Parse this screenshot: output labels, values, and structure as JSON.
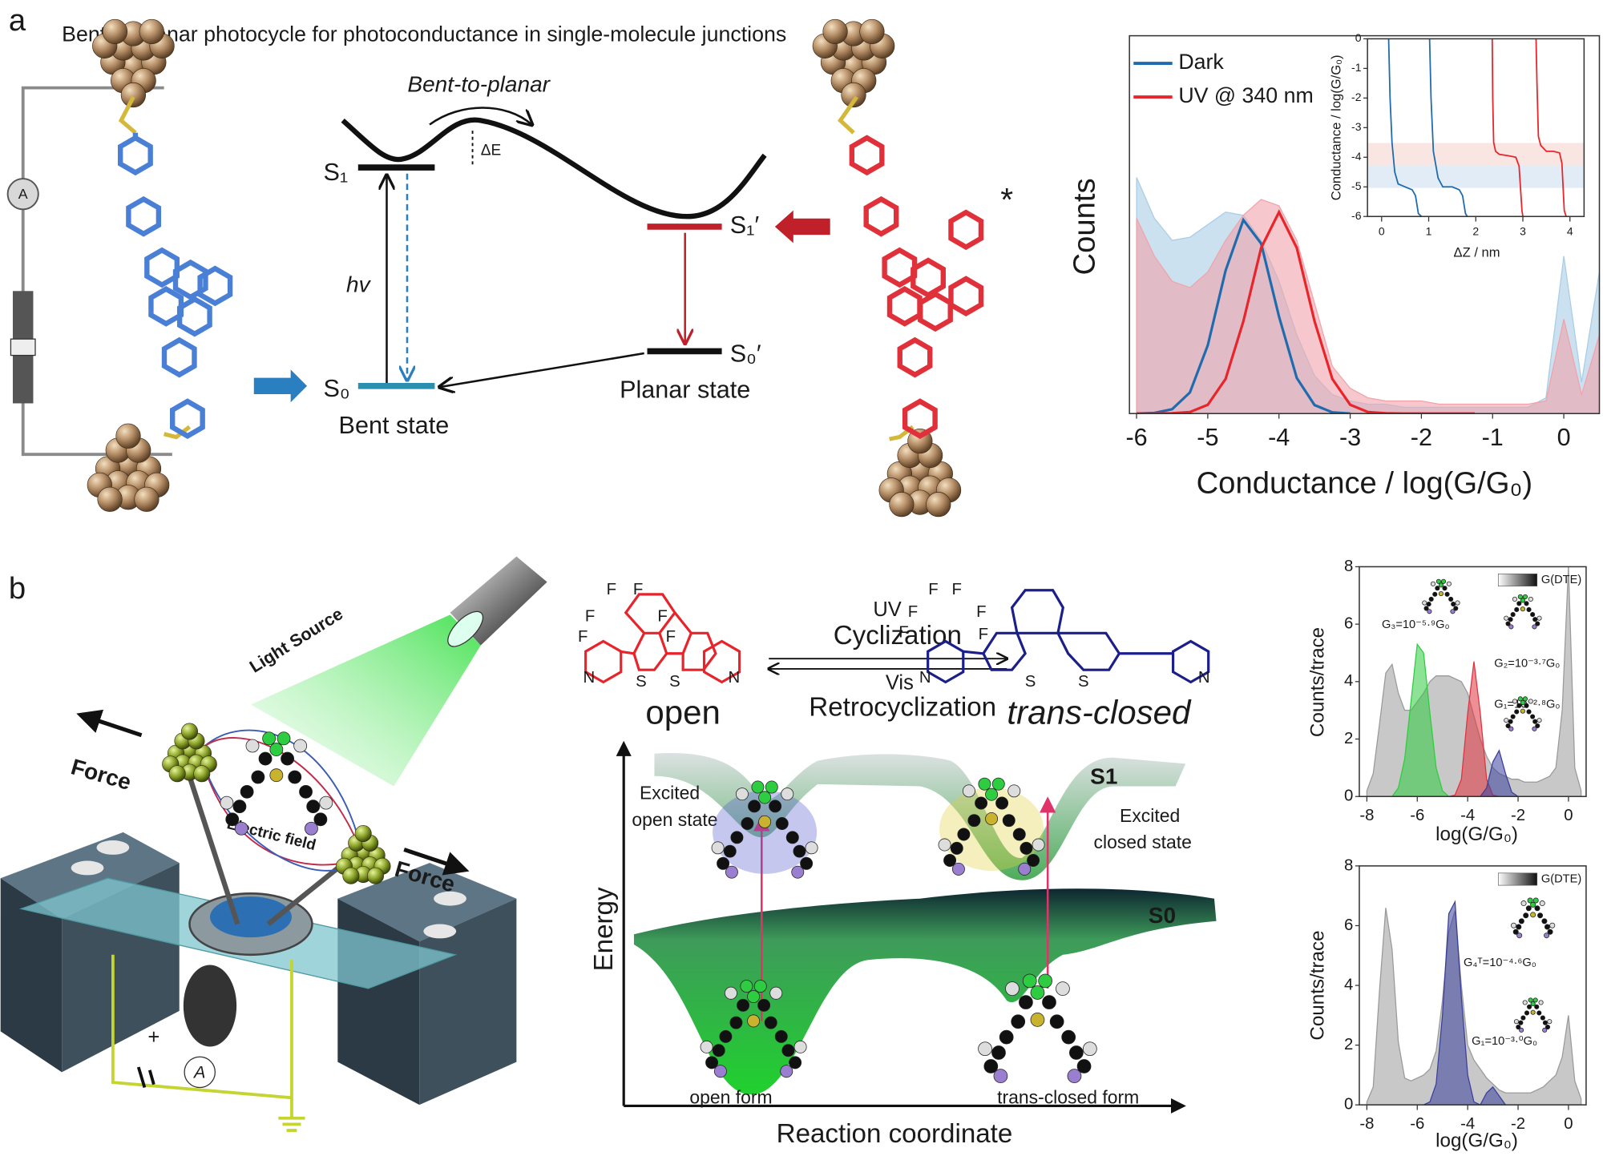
{
  "panel_a": {
    "label": "a",
    "title": "Bent-to-planar photocycle for photoconductance in single-molecule junctions",
    "ammeter": "A",
    "process": "Bent-to-planar",
    "barrier": "ΔE",
    "levels": {
      "s1": "S₁",
      "s1_prime": "S₁′",
      "s0": "S₀",
      "s0_prime": "S₀′"
    },
    "excitation": "hv",
    "bent_state": "Bent state",
    "planar_state": "Planar state",
    "excited_mark": "*"
  },
  "panel_b": {
    "label": "b",
    "light_source": "Light Source",
    "force_left": "Force",
    "force_right": "Force",
    "electric_field": "Electric field",
    "battery_sign": "+",
    "ammeter": "A",
    "forward_light": "UV",
    "forward_reaction": "Cyclization",
    "backward_light": "Vis",
    "backward_reaction": "Retrocyclization",
    "open_isomer": "open",
    "closed_isomer": "trans-closed",
    "open_atoms": [
      "F",
      "F",
      "F",
      "F",
      "F",
      "F",
      "N",
      "S",
      "S",
      "N"
    ],
    "closed_atoms": [
      "F",
      "F",
      "F",
      "F",
      "F",
      "F",
      "N",
      "S",
      "S",
      "N"
    ],
    "energy_axis": "Energy",
    "coordinate_axis": "Reaction coordinate",
    "excited_surface": "S1",
    "ground_surface": "S0",
    "excited_open": [
      "Excited",
      "open state"
    ],
    "excited_closed": [
      "Excited",
      "closed state"
    ],
    "open_form": "open form",
    "closed_form": "trans-closed form"
  },
  "chart_data": [
    {
      "type": "area",
      "xlabel": "Conductance / log(G/G₀)",
      "ylabel": "Counts",
      "x": [
        -6,
        -5.75,
        -5.5,
        -5.25,
        -5,
        -4.75,
        -4.5,
        -4.25,
        -4,
        -3.75,
        -3.5,
        -3.25,
        -3,
        -2.75,
        -2.5,
        -2.25,
        -2,
        -1.75,
        -1.5,
        -1.25,
        -1,
        -0.75,
        -0.5,
        -0.25,
        0,
        0.25,
        0.5
      ],
      "xlim": [
        -6.1,
        0.5
      ],
      "ylim": [
        0,
        120
      ],
      "xticks": [
        -6,
        -5,
        -4,
        -3,
        -2,
        -1,
        0
      ],
      "legend": "upper left",
      "series": [
        {
          "color": "#a9cde6",
          "style": "area",
          "values": [
            75,
            62,
            55,
            56,
            60,
            64,
            63,
            55,
            42,
            25,
            12,
            6,
            4,
            3,
            3,
            2,
            2,
            2,
            2,
            2,
            2,
            2,
            2,
            5,
            50,
            10,
            45
          ]
        },
        {
          "color": "#f0a3ab",
          "style": "area",
          "values": [
            62,
            50,
            42,
            40,
            45,
            55,
            63,
            68,
            66,
            55,
            35,
            15,
            8,
            5,
            4,
            4,
            4,
            3,
            3,
            3,
            3,
            3,
            3,
            4,
            30,
            6,
            25
          ]
        },
        {
          "name": "Dark",
          "color": "#1f6bad",
          "style": "line",
          "values": [
            0,
            0.2,
            1.4,
            6.7,
            21.7,
            45.4,
            61.5,
            54,
            30.8,
            11.3,
            2.7,
            0.4,
            0,
            null,
            null,
            null,
            null,
            null,
            null,
            null,
            null,
            null,
            null,
            null,
            null,
            null,
            null
          ]
        },
        {
          "name": "UV @ 340 nm",
          "color": "#e8252a",
          "style": "line",
          "values": [
            0,
            0,
            0.1,
            0.5,
            2.8,
            11,
            29.3,
            52.6,
            64,
            52.6,
            29.3,
            11,
            2.8,
            0.5,
            0.1,
            0,
            0,
            0,
            0,
            0,
            null,
            null,
            null,
            null,
            null,
            null,
            null
          ]
        }
      ]
    },
    {
      "type": "line",
      "xlabel": "ΔZ / nm",
      "ylabel": "Conductance / log(G/G₀)",
      "xlim": [
        -0.3,
        4.3
      ],
      "ylim": [
        -6,
        0
      ],
      "xticks": [
        0,
        1,
        2,
        3,
        4
      ],
      "yticks": [
        0,
        -1,
        -2,
        -3,
        -4,
        -5,
        -6
      ],
      "series": [
        {
          "color": "#1f6bad",
          "x": [
            0.15,
            0.18,
            0.22,
            0.28,
            0.35,
            0.5,
            0.65,
            0.72,
            0.78,
            0.85
          ],
          "values": [
            0,
            -2,
            -3.5,
            -4.5,
            -4.9,
            -5,
            -5.1,
            -5.3,
            -5.9,
            -6
          ]
        },
        {
          "color": "#1f6bad",
          "x": [
            1.02,
            1.05,
            1.1,
            1.2,
            1.3,
            1.5,
            1.65,
            1.72,
            1.78,
            1.82
          ],
          "values": [
            0,
            -2,
            -3.8,
            -4.7,
            -5,
            -5,
            -5.1,
            -5.3,
            -5.9,
            -6
          ]
        },
        {
          "color": "#e8252a",
          "x": [
            2.35,
            2.36,
            2.38,
            2.42,
            2.5,
            2.7,
            2.85,
            2.92,
            2.98,
            3
          ],
          "values": [
            0,
            -2,
            -3.5,
            -3.8,
            -3.9,
            -3.95,
            -4,
            -4.3,
            -5.8,
            -6
          ]
        },
        {
          "color": "#e8252a",
          "x": [
            3.28,
            3.3,
            3.33,
            3.38,
            3.5,
            3.65,
            3.78,
            3.83,
            3.88,
            3.92
          ],
          "values": [
            0,
            -1.5,
            -3.3,
            -3.6,
            -3.8,
            -3.8,
            -3.85,
            -4.2,
            -5.8,
            -6
          ]
        }
      ]
    },
    {
      "type": "area",
      "xlabel": "log(G/G₀)",
      "ylabel": "Counts/trace",
      "x": [
        -8,
        -7.75,
        -7.5,
        -7.25,
        -7,
        -6.75,
        -6.5,
        -6.25,
        -6,
        -5.75,
        -5.5,
        -5.25,
        -5,
        -4.75,
        -4.5,
        -4.25,
        -4,
        -3.75,
        -3.5,
        -3.25,
        -3,
        -2.75,
        -2.5,
        -2.25,
        -2,
        -1.75,
        -1.5,
        -1.25,
        -1,
        -0.75,
        -0.5,
        -0.25,
        0,
        0.25,
        0.5
      ],
      "xlim": [
        -8.3,
        0.7
      ],
      "ylim": [
        0,
        8
      ],
      "xticks": [
        -8,
        -6,
        -4,
        -2,
        0
      ],
      "yticks": [
        0,
        2,
        4,
        6,
        8
      ],
      "annotations": [
        "G(DTE)",
        "G₃=10⁻⁵·⁹G₀",
        "G₂=10⁻³·⁷G₀",
        "G₁=10⁻²·⁸G₀"
      ],
      "series": [
        {
          "color": "#9a9a9a",
          "values": [
            0.2,
            0.8,
            2.5,
            4.3,
            4.6,
            3.6,
            3.0,
            3.0,
            3.3,
            3.6,
            4.0,
            4.2,
            4.2,
            4.2,
            4.1,
            4.0,
            3.6,
            2.8,
            2.0,
            1.4,
            1.0,
            0.8,
            0.7,
            0.6,
            0.6,
            0.5,
            0.5,
            0.5,
            0.6,
            0.7,
            1.0,
            3.0,
            8.0,
            1.0,
            0.2
          ]
        },
        {
          "color": "#2ecc40",
          "values": [
            0,
            0,
            0,
            0,
            0,
            0.3,
            1.3,
            3.3,
            5.3,
            5.0,
            2.9,
            1.0,
            0.2,
            0,
            0,
            0,
            0,
            0,
            0,
            0,
            0,
            0,
            0,
            0,
            0,
            0,
            0,
            0,
            0,
            0,
            0,
            0,
            0,
            0,
            0
          ]
        },
        {
          "color": "#e0333f",
          "values": [
            0,
            0,
            0,
            0,
            0,
            0,
            0,
            0,
            0,
            0,
            0,
            0,
            0,
            0,
            0.05,
            0.6,
            2.9,
            4.7,
            2.9,
            0.6,
            0.05,
            0,
            0,
            0,
            0,
            0,
            0,
            0,
            0,
            0,
            0,
            0,
            0,
            0,
            0
          ]
        },
        {
          "color": "#3b3f9c",
          "values": [
            0,
            0,
            0,
            0,
            0,
            0,
            0,
            0,
            0,
            0,
            0,
            0,
            0,
            0,
            0,
            0,
            0,
            0,
            0,
            0.3,
            1.2,
            1.6,
            0.8,
            0.15,
            0,
            0,
            0,
            0,
            0,
            0,
            0,
            0,
            0,
            0,
            0
          ]
        }
      ]
    },
    {
      "type": "area",
      "xlabel": "log(G/G₀)",
      "ylabel": "Counts/trace",
      "x": [
        -8,
        -7.75,
        -7.5,
        -7.25,
        -7,
        -6.75,
        -6.5,
        -6.25,
        -6,
        -5.75,
        -5.5,
        -5.25,
        -5,
        -4.75,
        -4.5,
        -4.25,
        -4,
        -3.75,
        -3.5,
        -3.25,
        -3,
        -2.75,
        -2.5,
        -2.25,
        -2,
        -1.75,
        -1.5,
        -1.25,
        -1,
        -0.75,
        -0.5,
        -0.25,
        0,
        0.25,
        0.5
      ],
      "xlim": [
        -8.3,
        0.7
      ],
      "ylim": [
        0,
        8
      ],
      "xticks": [
        -8,
        -6,
        -4,
        -2,
        0
      ],
      "yticks": [
        0,
        2,
        4,
        6,
        8
      ],
      "annotations": [
        "G(DTE)",
        "G₄ᵀ=10⁻⁴·⁶G₀",
        "G₁=10⁻³·⁰G₀"
      ],
      "series": [
        {
          "color": "#9a9a9a",
          "values": [
            0.1,
            0.6,
            3.8,
            6.6,
            5.2,
            2.1,
            0.9,
            0.8,
            0.9,
            1.0,
            1.2,
            1.8,
            3.5,
            5.8,
            6.5,
            4.0,
            2.0,
            1.5,
            1.2,
            0.9,
            0.7,
            0.5,
            0.4,
            0.4,
            0.4,
            0.4,
            0.4,
            0.5,
            0.6,
            0.8,
            1.0,
            1.6,
            3.0,
            0.8,
            0.2
          ]
        },
        {
          "color": "#3b3f9c",
          "values": [
            0,
            0,
            0,
            0,
            0,
            0,
            0,
            0,
            0,
            0,
            0.1,
            0.7,
            3.0,
            6.4,
            6.8,
            3.6,
            1.0,
            0.1,
            0,
            0.4,
            0.6,
            0.3,
            0,
            0,
            0,
            0,
            0,
            0,
            0,
            0,
            0,
            0,
            0,
            0,
            0
          ]
        }
      ]
    }
  ]
}
